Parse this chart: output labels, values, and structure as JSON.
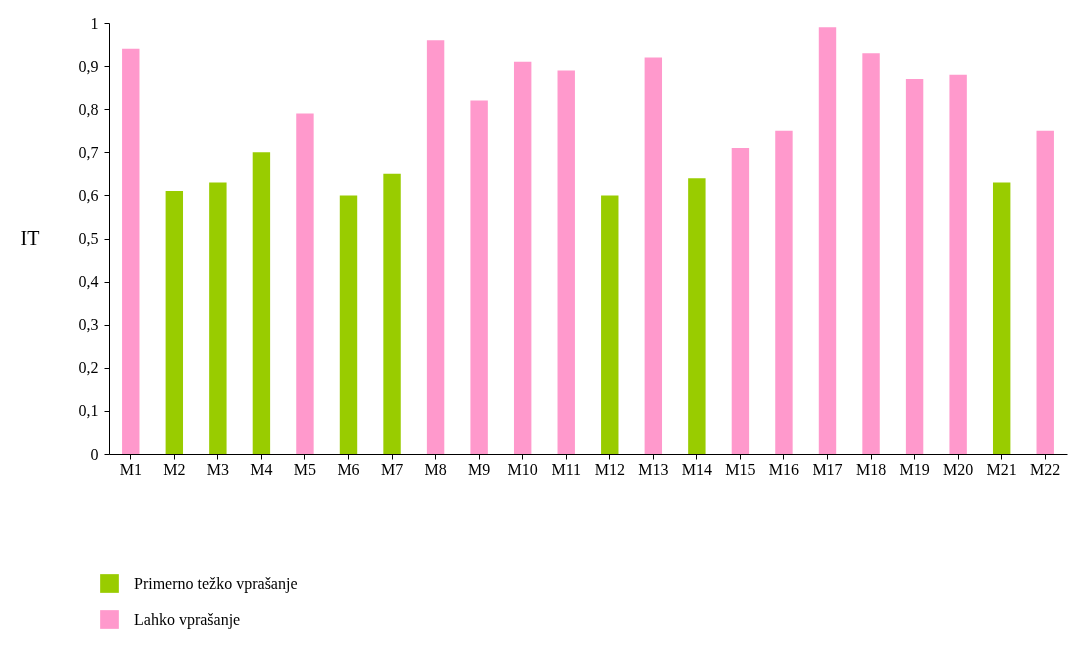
{
  "chart_data": {
    "type": "bar",
    "ylabel": "IT",
    "categories": [
      "M1",
      "M2",
      "M3",
      "M4",
      "M5",
      "M6",
      "M7",
      "M8",
      "M9",
      "M10",
      "M11",
      "M12",
      "M13",
      "M14",
      "M15",
      "M16",
      "M17",
      "M18",
      "M19",
      "M20",
      "M21",
      "M22"
    ],
    "series": [
      {
        "name": "Primerno težko vprašanje",
        "color": "#99cc00",
        "values": [
          null,
          0.61,
          0.63,
          0.7,
          null,
          0.6,
          0.65,
          null,
          null,
          null,
          null,
          0.6,
          null,
          0.64,
          null,
          null,
          null,
          null,
          null,
          null,
          0.63,
          null
        ]
      },
      {
        "name": "Lahko vprašanje",
        "color": "#ff99cc",
        "values": [
          0.94,
          null,
          null,
          null,
          0.79,
          null,
          null,
          0.96,
          0.82,
          0.91,
          0.89,
          null,
          0.92,
          null,
          0.71,
          0.75,
          0.99,
          0.93,
          0.87,
          0.88,
          null,
          0.75
        ]
      }
    ],
    "ylim": [
      0,
      1
    ],
    "yticks": [
      0,
      {
        "value": 0.1,
        "label": "0,1"
      },
      {
        "value": 0.2,
        "label": "0,2"
      },
      {
        "value": 0.3,
        "label": "0,3"
      },
      {
        "value": 0.4,
        "label": "0,4"
      },
      {
        "value": 0.5,
        "label": "0,5"
      },
      {
        "value": 0.6,
        "label": "0,6"
      },
      {
        "value": 0.7,
        "label": "0,7"
      },
      {
        "value": 0.8,
        "label": "0,8"
      },
      {
        "value": 0.9,
        "label": "0,9"
      },
      1
    ],
    "grid": false,
    "legend": "bottom left"
  }
}
